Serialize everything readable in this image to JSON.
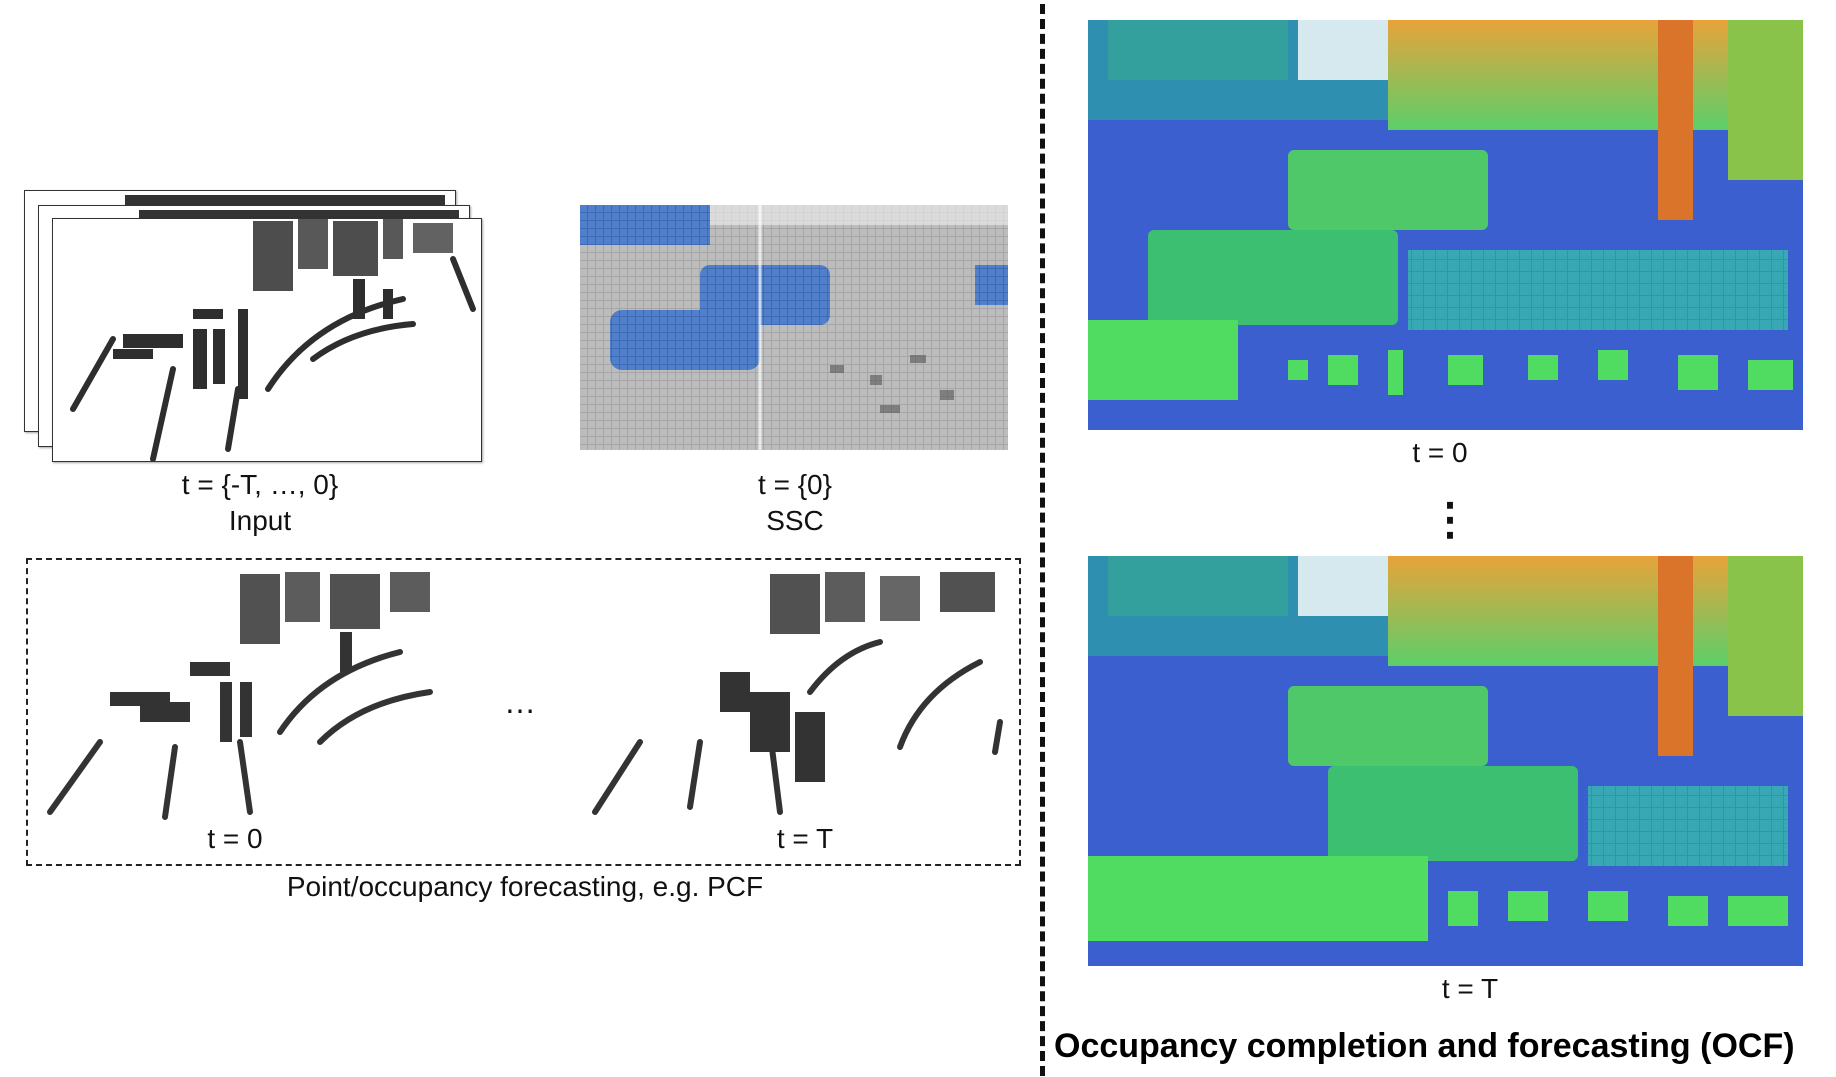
{
  "left": {
    "input_time_label": "t = {-T, …, 0}",
    "input_caption": "Input",
    "ssc_time_label": "t = {0}",
    "ssc_caption": "SSC",
    "forecast": {
      "first_time_label": "t = 0",
      "ellipsis": "…",
      "last_time_label": "t = T",
      "caption": "Point/occupancy forecasting, e.g. PCF"
    }
  },
  "right": {
    "top_time_label": "t = 0",
    "vertical_ellipsis": "⋮",
    "bottom_time_label": "t = T",
    "title": "Occupancy completion and forecasting (OCF)"
  },
  "colors": {
    "voxel_dark": "#333333",
    "ssc_gray": "#a9a9a9",
    "ssc_blue": "#4a78c2",
    "ocf_ground": "#3a5fd0",
    "ocf_green": "#3dd66b",
    "ocf_orange": "#e8742a"
  }
}
